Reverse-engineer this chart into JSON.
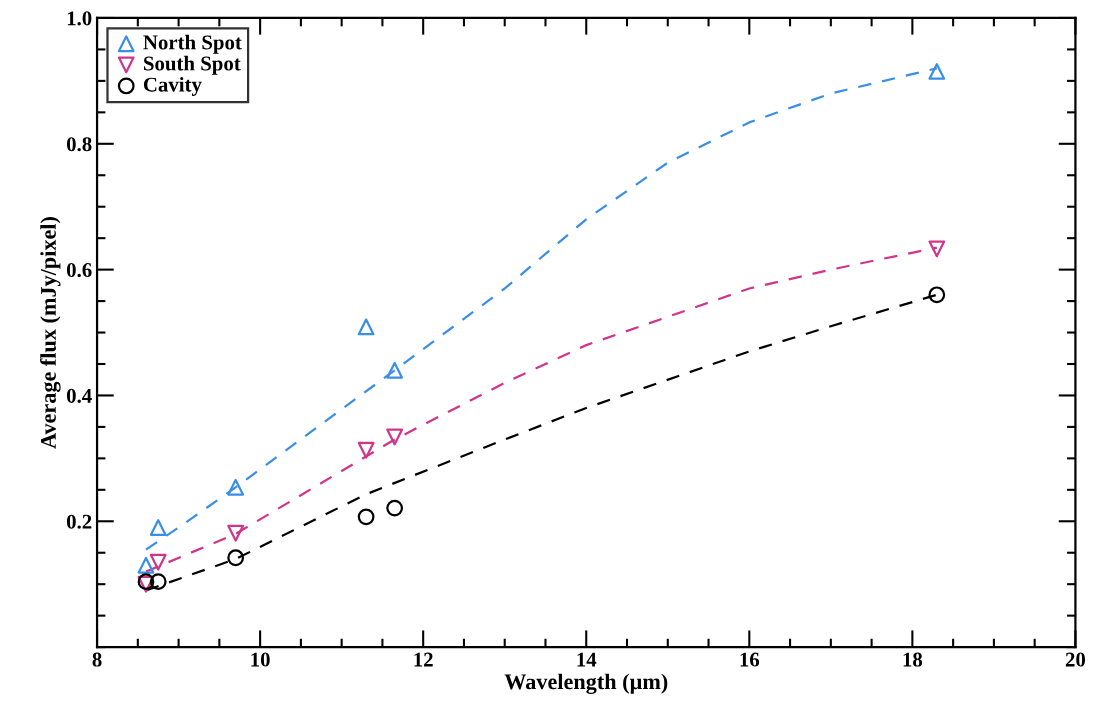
{
  "chart_data": {
    "type": "scatter",
    "xlabel": "Wavelength (µm)",
    "ylabel": "Average flux (mJy/pixel)",
    "xlim": [
      8,
      20
    ],
    "ylim": [
      0,
      1.0
    ],
    "xticks": [
      8,
      10,
      12,
      14,
      16,
      18,
      20
    ],
    "yticks": [
      0.2,
      0.4,
      0.6,
      0.8,
      {
        "value": 1.0,
        "label": "1.0"
      }
    ],
    "grid": false,
    "legend": "top left",
    "series": [
      {
        "name": "North Spot",
        "color": "#3a8ee6",
        "marker": "triangle",
        "x": [
          8.6,
          8.75,
          9.7,
          11.3,
          11.65,
          18.3
        ],
        "values": [
          0.13,
          0.19,
          0.254,
          0.509,
          0.44,
          0.915
        ]
      },
      {
        "name": "South Spot",
        "color": "#d1348a",
        "marker": "triangle_down",
        "x": [
          8.6,
          8.75,
          9.7,
          11.3,
          11.65,
          18.3
        ],
        "values": [
          0.1,
          0.135,
          0.181,
          0.313,
          0.334,
          0.633
        ]
      },
      {
        "name": "Cavity",
        "color": "#000000",
        "marker": "circle",
        "x": [
          8.6,
          8.75,
          9.7,
          11.3,
          11.65,
          18.3
        ],
        "values": [
          0.104,
          0.104,
          0.142,
          0.207,
          0.221,
          0.56
        ]
      },
      {
        "type": "line",
        "color": "#3a8ee6",
        "line_style": "dashed",
        "x": [
          8.6,
          9.0,
          9.7,
          11.0,
          11.65,
          13.0,
          14.0,
          15.0,
          16.0,
          17.0,
          18.3
        ],
        "values": [
          0.155,
          0.19,
          0.254,
          0.378,
          0.44,
          0.57,
          0.68,
          0.77,
          0.834,
          0.88,
          0.92
        ]
      },
      {
        "type": "line",
        "color": "#d1348a",
        "line_style": "dashed",
        "x": [
          8.6,
          9.7,
          11.65,
          13.0,
          14.0,
          16.0,
          17.0,
          18.3
        ],
        "values": [
          0.12,
          0.18,
          0.33,
          0.42,
          0.48,
          0.57,
          0.6,
          0.635
        ]
      },
      {
        "type": "line",
        "color": "#000000",
        "line_style": "dashed",
        "x": [
          8.6,
          9.7,
          11.3,
          13.0,
          14.0,
          16.0,
          17.0,
          18.3
        ],
        "values": [
          0.09,
          0.14,
          0.243,
          0.33,
          0.38,
          0.47,
          0.51,
          0.56
        ]
      }
    ]
  }
}
